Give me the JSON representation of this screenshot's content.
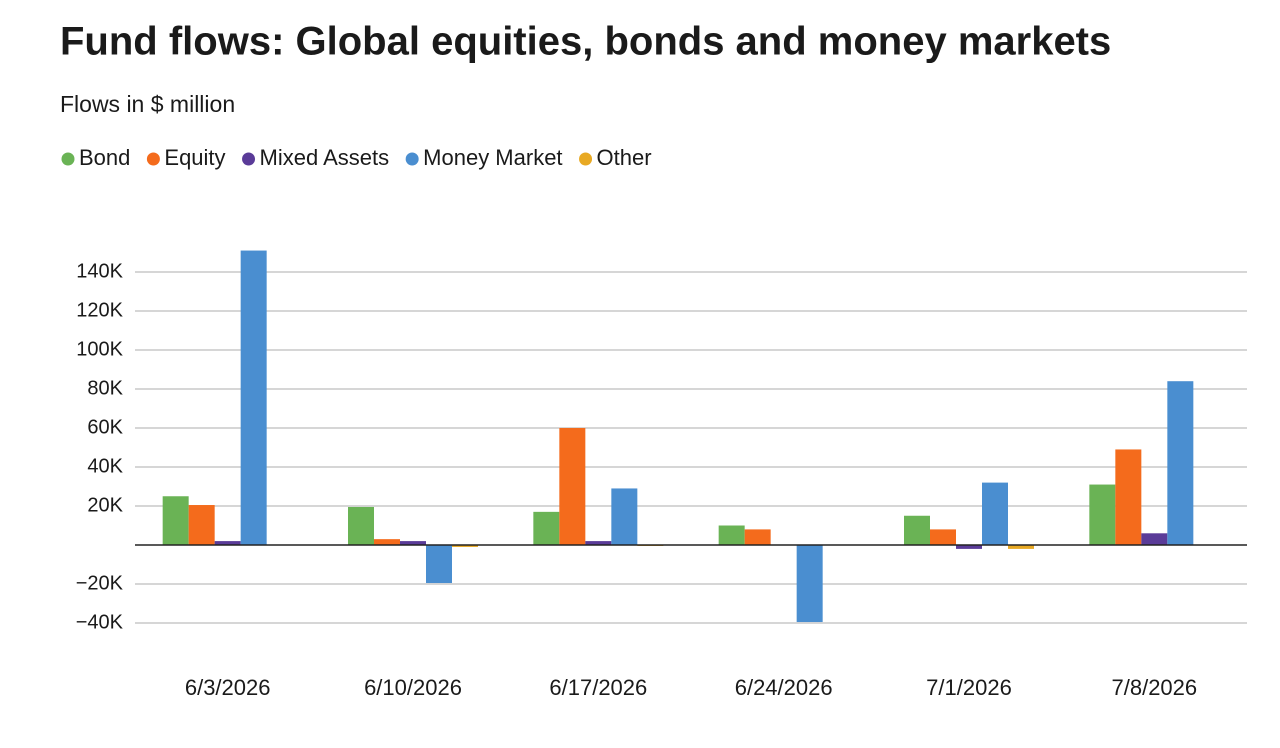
{
  "chart_data": {
    "type": "bar",
    "title": "Fund flows: Global equities, bonds and money markets",
    "subtitle": "Flows in $ million",
    "categories": [
      "6/3/2026",
      "6/10/2026",
      "6/17/2026",
      "6/24/2026",
      "7/1/2026",
      "7/8/2026"
    ],
    "series": [
      {
        "name": "Bond",
        "color": "#6ab355",
        "values": [
          25000,
          19500,
          17000,
          10000,
          15000,
          31000
        ]
      },
      {
        "name": "Equity",
        "color": "#f46b1c",
        "values": [
          20500,
          3000,
          60000,
          8000,
          8000,
          49000
        ]
      },
      {
        "name": "Mixed Assets",
        "color": "#5a3b98",
        "values": [
          2000,
          2000,
          2000,
          0,
          -2000,
          6000
        ]
      },
      {
        "name": "Money Market",
        "color": "#4a8ed0",
        "values": [
          151000,
          -19500,
          29000,
          -39500,
          32000,
          84000
        ]
      },
      {
        "name": "Other",
        "color": "#e8a923",
        "values": [
          0,
          -1000,
          -500,
          0,
          -2000,
          0
        ]
      }
    ],
    "ylim": [
      -50000,
      160000
    ],
    "yticks": [
      {
        "value": -40000,
        "label": "−40K"
      },
      {
        "value": -20000,
        "label": "−20K"
      },
      {
        "value": 20000,
        "label": "20K"
      },
      {
        "value": 40000,
        "label": "40K"
      },
      {
        "value": 60000,
        "label": "60K"
      },
      {
        "value": 80000,
        "label": "80K"
      },
      {
        "value": 100000,
        "label": "100K"
      },
      {
        "value": 120000,
        "label": "120K"
      },
      {
        "value": 140000,
        "label": "140K"
      }
    ],
    "grid": true,
    "legend": "top"
  }
}
